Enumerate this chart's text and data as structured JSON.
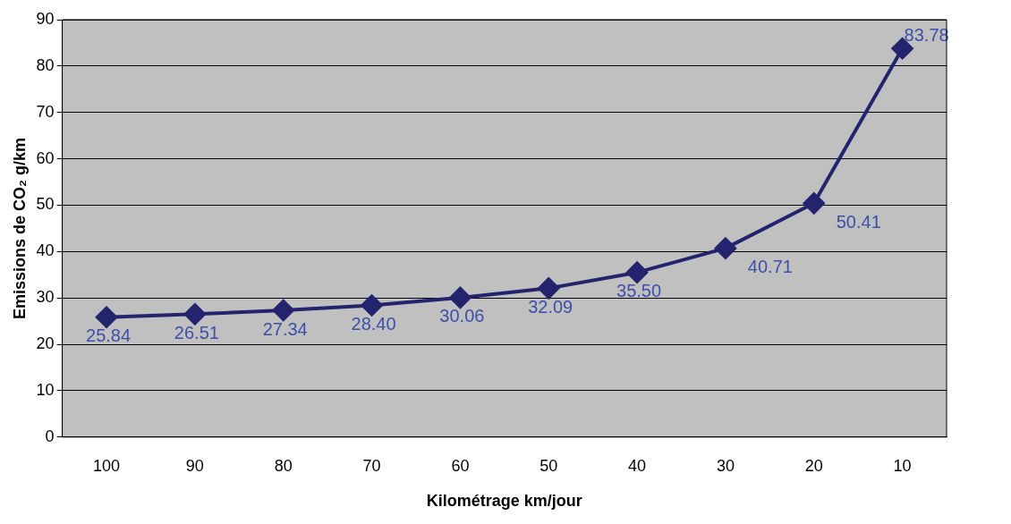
{
  "chart_data": {
    "type": "line",
    "xlabel": "Kilométrage km/jour",
    "ylabel": "Emissions de CO₂ g/km",
    "categories": [
      "100",
      "90",
      "80",
      "70",
      "60",
      "50",
      "40",
      "30",
      "20",
      "10"
    ],
    "series": [
      {
        "color": "#24246e",
        "values": [
          25.84,
          26.51,
          27.34,
          28.4,
          30.06,
          32.09,
          35.5,
          40.71,
          50.41,
          83.78
        ],
        "value_labels": [
          "25.84",
          "26.51",
          "27.34",
          "28.40",
          "30.06",
          "32.09",
          "35.50",
          "40.71",
          "50.41",
          "83.78"
        ]
      }
    ],
    "ylim": [
      0,
      90
    ],
    "yticks": [
      0,
      10,
      20,
      30,
      40,
      50,
      60,
      70,
      80,
      90
    ],
    "grid": "y",
    "marker": "diamond",
    "line_style": "solid",
    "legend": false
  }
}
